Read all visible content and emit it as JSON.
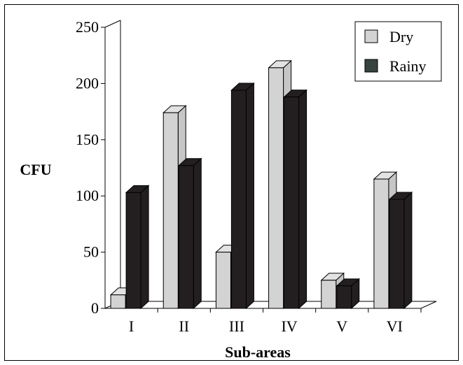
{
  "chart_data": {
    "type": "bar",
    "title": "",
    "xlabel": "Sub-areas",
    "ylabel": "CFU",
    "categories": [
      "I",
      "II",
      "III",
      "IV",
      "V",
      "VI"
    ],
    "series": [
      {
        "name": "Dry",
        "values": [
          12,
          174,
          50,
          214,
          25,
          115
        ],
        "color": "#d3d3d3"
      },
      {
        "name": "Rainy",
        "values": [
          103,
          127,
          194,
          188,
          20,
          97
        ],
        "color": "#231f20"
      }
    ],
    "ylim": [
      0,
      250
    ],
    "yticks": [
      0,
      50,
      100,
      150,
      200,
      250
    ],
    "style": "3d-bars",
    "grid": false,
    "legend_position": "top-right"
  }
}
